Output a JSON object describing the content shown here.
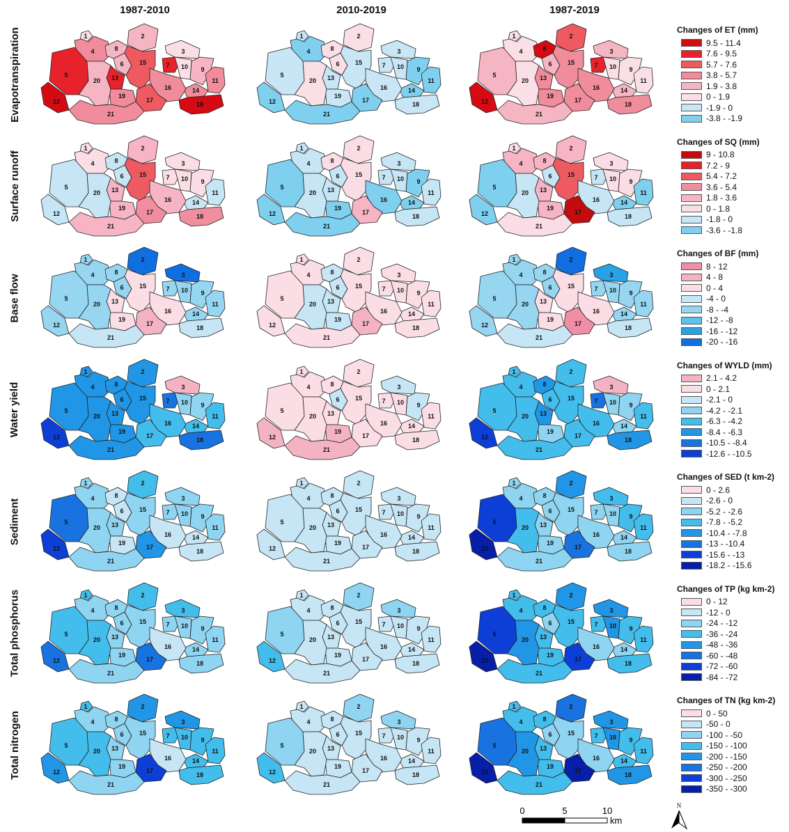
{
  "periods": [
    "1987-2010",
    "2010-2019",
    "1987-2019"
  ],
  "rows": [
    {
      "label": "Evapotranspiration",
      "legend_title": "Changes of ET (mm)",
      "classes": [
        {
          "label": "9.5 - 11.4",
          "color": "#d60a12"
        },
        {
          "label": "7.6 - 9.5",
          "color": "#e8222b"
        },
        {
          "label": "5.7 - 7.6",
          "color": "#ef5a61"
        },
        {
          "label": "3.8 - 5.7",
          "color": "#f08c9b"
        },
        {
          "label": "1.9 - 3.8",
          "color": "#f6b5c3"
        },
        {
          "label": "0 - 1.9",
          "color": "#fbdfe6"
        },
        {
          "label": "-1.9 - 0",
          "color": "#c9e6f6"
        },
        {
          "label": "-3.8 - -1.9",
          "color": "#7fd0ee"
        }
      ],
      "maps": [
        [
          5,
          4,
          5,
          3,
          1,
          4,
          1,
          4,
          4,
          5,
          3,
          0,
          1,
          3,
          2,
          3,
          2,
          0,
          3,
          4,
          3
        ],
        [
          6,
          5,
          6,
          7,
          6,
          5,
          6,
          5,
          7,
          6,
          7,
          7,
          6,
          7,
          6,
          6,
          7,
          6,
          6,
          5,
          7
        ],
        [
          5,
          2,
          4,
          5,
          4,
          4,
          1,
          0,
          5,
          5,
          5,
          0,
          3,
          4,
          3,
          3,
          3,
          3,
          3,
          5,
          4
        ]
      ]
    },
    {
      "label": "Surface runoff",
      "legend_title": "Changes of SQ (mm)",
      "classes": [
        {
          "label": "9 - 10.8",
          "color": "#c40c10"
        },
        {
          "label": "7.2 - 9",
          "color": "#e42128"
        },
        {
          "label": "5.4 - 7.2",
          "color": "#ee5a62"
        },
        {
          "label": "3.6 - 5.4",
          "color": "#f08ea0"
        },
        {
          "label": "1.8 - 3.6",
          "color": "#f6b4c4"
        },
        {
          "label": "0 - 1.8",
          "color": "#fbdde5"
        },
        {
          "label": "-1.8 - 0",
          "color": "#c6e5f5"
        },
        {
          "label": "-3.6 - -1.8",
          "color": "#7fcfee"
        }
      ],
      "maps": [
        [
          5,
          4,
          5,
          5,
          6,
          6,
          5,
          6,
          5,
          5,
          6,
          6,
          4,
          6,
          2,
          4,
          3,
          3,
          4,
          6,
          4
        ],
        [
          6,
          5,
          6,
          6,
          7,
          6,
          6,
          5,
          7,
          6,
          6,
          7,
          6,
          7,
          5,
          7,
          4,
          6,
          7,
          6,
          7
        ],
        [
          5,
          4,
          5,
          4,
          7,
          6,
          6,
          4,
          5,
          5,
          7,
          7,
          4,
          7,
          2,
          6,
          0,
          6,
          4,
          6,
          5
        ]
      ]
    },
    {
      "label": "Base flow",
      "legend_title": "Changes of BF (mm)",
      "classes": [
        {
          "label": "8 - 12",
          "color": "#ef8ea5"
        },
        {
          "label": "4 - 8",
          "color": "#f4b3c3"
        },
        {
          "label": "0 - 4",
          "color": "#fbdde5"
        },
        {
          "label": "-4 - 0",
          "color": "#c6e5f5"
        },
        {
          "label": "-8 - -4",
          "color": "#96d6f1"
        },
        {
          "label": "-12 - -8",
          "color": "#5cc4ec"
        },
        {
          "label": "-16 - -12",
          "color": "#27a2e6"
        },
        {
          "label": "-20 - -16",
          "color": "#0f6fe0"
        }
      ],
      "maps": [
        [
          4,
          7,
          7,
          4,
          4,
          4,
          4,
          4,
          4,
          4,
          4,
          4,
          2,
          4,
          2,
          2,
          1,
          3,
          2,
          4,
          3
        ],
        [
          2,
          2,
          2,
          2,
          2,
          3,
          2,
          3,
          2,
          2,
          2,
          2,
          3,
          2,
          2,
          2,
          1,
          2,
          3,
          3,
          2
        ],
        [
          4,
          7,
          6,
          4,
          4,
          4,
          4,
          4,
          4,
          4,
          4,
          4,
          2,
          4,
          2,
          2,
          0,
          3,
          2,
          4,
          3
        ]
      ]
    },
    {
      "label": "Water yield",
      "legend_title": "Changes of WYLD (mm)",
      "classes": [
        {
          "label": "2.1 - 4.2",
          "color": "#f4b3c3"
        },
        {
          "label": "0 - 2.1",
          "color": "#fbdde5"
        },
        {
          "label": "-2.1 - 0",
          "color": "#c6e5f5"
        },
        {
          "label": "-4.2 - -2.1",
          "color": "#8fd4f0"
        },
        {
          "label": "-6.3 - -4.2",
          "color": "#43bdec"
        },
        {
          "label": "-8.4 - -6.3",
          "color": "#2196e6"
        },
        {
          "label": "-10.5 - -8.4",
          "color": "#1873e0"
        },
        {
          "label": "-12.6 - -10.5",
          "color": "#0d3fd6"
        }
      ],
      "maps": [
        [
          5,
          5,
          0,
          5,
          5,
          5,
          6,
          5,
          3,
          3,
          4,
          7,
          5,
          4,
          5,
          4,
          4,
          6,
          5,
          5,
          5
        ],
        [
          1,
          1,
          2,
          1,
          1,
          2,
          1,
          1,
          2,
          1,
          1,
          0,
          1,
          1,
          1,
          1,
          1,
          1,
          0,
          1,
          0
        ],
        [
          4,
          4,
          0,
          4,
          4,
          4,
          6,
          5,
          3,
          3,
          4,
          7,
          5,
          3,
          4,
          4,
          4,
          5,
          3,
          4,
          4
        ]
      ]
    },
    {
      "label": "Sediment",
      "legend_title": "Changes of SED (t km-2)",
      "classes": [
        {
          "label": "0 - 2.6",
          "color": "#fbdde5"
        },
        {
          "label": "-2.6 - 0",
          "color": "#c6e5f5"
        },
        {
          "label": "-5.2 - -2.6",
          "color": "#8fd4f0"
        },
        {
          "label": "-7.8 - -5.2",
          "color": "#43bdec"
        },
        {
          "label": "-10.4 - -7.8",
          "color": "#2196e6"
        },
        {
          "label": "-13 - -10.4",
          "color": "#1873e0"
        },
        {
          "label": "-15.6 - -13",
          "color": "#0d3fd6"
        },
        {
          "label": "-18.2 - -15.6",
          "color": "#061ea8"
        }
      ],
      "maps": [
        [
          2,
          3,
          2,
          2,
          5,
          1,
          2,
          1,
          2,
          2,
          2,
          6,
          2,
          1,
          2,
          1,
          4,
          1,
          1,
          2,
          2
        ],
        [
          1,
          1,
          1,
          1,
          1,
          1,
          1,
          1,
          1,
          1,
          1,
          1,
          1,
          1,
          1,
          1,
          1,
          1,
          1,
          1,
          1
        ],
        [
          2,
          4,
          3,
          2,
          6,
          2,
          2,
          2,
          3,
          2,
          3,
          7,
          2,
          2,
          2,
          2,
          5,
          2,
          2,
          3,
          2
        ]
      ]
    },
    {
      "label": "Total phosphorus",
      "legend_title": "Changes of TP (kg km-2)",
      "classes": [
        {
          "label": "0 - 12",
          "color": "#fbdde5"
        },
        {
          "label": "-12 - 0",
          "color": "#c6e5f5"
        },
        {
          "label": "-24 - -12",
          "color": "#8fd4f0"
        },
        {
          "label": "-36 - -24",
          "color": "#43bdec"
        },
        {
          "label": "-48 - -36",
          "color": "#2196e6"
        },
        {
          "label": "-60 - -48",
          "color": "#1873e0"
        },
        {
          "label": "-72 - -60",
          "color": "#0d3fd6"
        },
        {
          "label": "-84 - -72",
          "color": "#061ea8"
        }
      ],
      "maps": [
        [
          3,
          3,
          3,
          2,
          3,
          2,
          2,
          2,
          2,
          2,
          2,
          5,
          2,
          2,
          2,
          1,
          5,
          2,
          2,
          3,
          2
        ],
        [
          1,
          2,
          2,
          1,
          2,
          1,
          1,
          1,
          1,
          1,
          1,
          3,
          1,
          1,
          1,
          1,
          1,
          1,
          1,
          1,
          1
        ],
        [
          3,
          4,
          4,
          3,
          6,
          2,
          3,
          3,
          3,
          4,
          3,
          7,
          3,
          2,
          3,
          2,
          6,
          3,
          3,
          4,
          3
        ]
      ]
    },
    {
      "label": "Total nitrogen",
      "legend_title": "Changes of TN (kg km-2)",
      "classes": [
        {
          "label": "0 - 50",
          "color": "#fbdde5"
        },
        {
          "label": "-50 - 0",
          "color": "#c6e5f5"
        },
        {
          "label": "-100 - -50",
          "color": "#8fd4f0"
        },
        {
          "label": "-150 - -100",
          "color": "#43bdec"
        },
        {
          "label": "-200 - -150",
          "color": "#2196e6"
        },
        {
          "label": "-250 - -200",
          "color": "#1873e0"
        },
        {
          "label": "-300 - -250",
          "color": "#0d3fd6"
        },
        {
          "label": "-350 - -300",
          "color": "#061ea8"
        }
      ],
      "maps": [
        [
          3,
          4,
          4,
          2,
          3,
          2,
          3,
          2,
          3,
          3,
          3,
          4,
          2,
          3,
          2,
          1,
          6,
          3,
          2,
          3,
          2
        ],
        [
          1,
          2,
          2,
          1,
          2,
          1,
          1,
          1,
          1,
          1,
          1,
          3,
          1,
          1,
          1,
          1,
          1,
          1,
          1,
          1,
          1
        ],
        [
          3,
          5,
          4,
          3,
          5,
          2,
          3,
          3,
          3,
          4,
          3,
          7,
          3,
          3,
          2,
          2,
          7,
          4,
          3,
          4,
          3
        ]
      ]
    }
  ],
  "subbasins": [
    "1",
    "2",
    "3",
    "4",
    "5",
    "6",
    "7",
    "8",
    "9",
    "10",
    "11",
    "12",
    "13",
    "14",
    "15",
    "16",
    "17",
    "18",
    "19",
    "20",
    "21"
  ],
  "scalebar": {
    "ticks": [
      "0",
      "5",
      "10"
    ],
    "unit": "km"
  },
  "north_label": "N"
}
